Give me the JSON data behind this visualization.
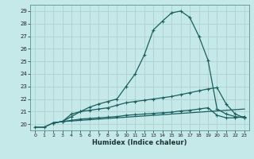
{
  "xlabel": "Humidex (Indice chaleur)",
  "ylabel": "",
  "xlim": [
    -0.5,
    23.5
  ],
  "ylim": [
    19.5,
    29.5
  ],
  "xticks": [
    0,
    1,
    2,
    3,
    4,
    5,
    6,
    7,
    8,
    9,
    10,
    11,
    12,
    13,
    14,
    15,
    16,
    17,
    18,
    19,
    20,
    21,
    22,
    23
  ],
  "yticks": [
    20,
    21,
    22,
    23,
    24,
    25,
    26,
    27,
    28,
    29
  ],
  "bg_color": "#c5e8e8",
  "line_color": "#1a6060",
  "grid_color": "#afd0d0",
  "line1_x": [
    0,
    1,
    2,
    3,
    4,
    5,
    6,
    7,
    8,
    9,
    10,
    11,
    12,
    13,
    14,
    15,
    16,
    17,
    18,
    19,
    20,
    21,
    22,
    23
  ],
  "line1_y": [
    19.75,
    19.75,
    20.1,
    20.2,
    20.25,
    20.3,
    20.35,
    20.4,
    20.45,
    20.5,
    20.55,
    20.6,
    20.65,
    20.7,
    20.75,
    20.8,
    20.85,
    20.9,
    20.95,
    21.0,
    21.05,
    21.1,
    21.15,
    21.2
  ],
  "line2_x": [
    0,
    1,
    2,
    3,
    4,
    5,
    6,
    7,
    8,
    9,
    10,
    11,
    12,
    13,
    14,
    15,
    16,
    17,
    18,
    19,
    20,
    21,
    22,
    23
  ],
  "line2_y": [
    19.75,
    19.75,
    20.1,
    20.2,
    20.6,
    21.0,
    21.35,
    21.6,
    21.8,
    22.0,
    23.0,
    24.0,
    25.5,
    27.5,
    28.2,
    28.85,
    29.0,
    28.5,
    27.0,
    25.1,
    21.2,
    20.8,
    20.6,
    20.5
  ],
  "line3_x": [
    2,
    3,
    4,
    5,
    6,
    7,
    8,
    9,
    10,
    11,
    12,
    13,
    14,
    15,
    16,
    17,
    18,
    19,
    20,
    21,
    22,
    23
  ],
  "line3_y": [
    20.1,
    20.2,
    20.8,
    21.0,
    21.1,
    21.2,
    21.3,
    21.5,
    21.7,
    21.8,
    21.9,
    22.0,
    22.1,
    22.2,
    22.35,
    22.5,
    22.65,
    22.8,
    22.9,
    21.6,
    20.8,
    20.5
  ],
  "line4_x": [
    2,
    3,
    4,
    5,
    6,
    7,
    8,
    9,
    10,
    11,
    12,
    13,
    14,
    15,
    16,
    17,
    18,
    19,
    20,
    21,
    22,
    23
  ],
  "line4_y": [
    20.1,
    20.2,
    20.3,
    20.4,
    20.45,
    20.5,
    20.55,
    20.6,
    20.7,
    20.75,
    20.8,
    20.85,
    20.9,
    20.95,
    21.05,
    21.1,
    21.2,
    21.3,
    20.7,
    20.5,
    20.5,
    20.6
  ]
}
